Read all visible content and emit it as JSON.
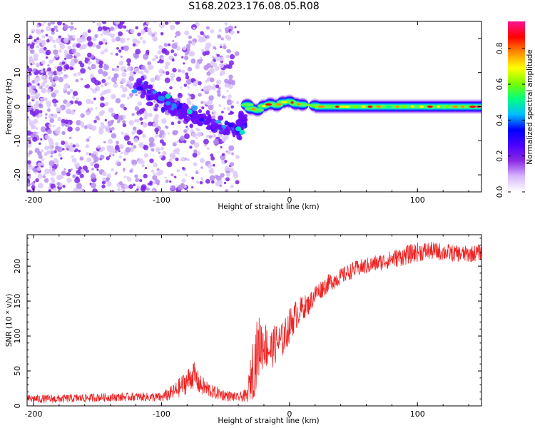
{
  "title": "S168.2023.176.08.05.R08",
  "chart_data": [
    {
      "type": "heatmap",
      "title": "S168.2023.176.08.05.R08",
      "xlabel": "Height of straight line (km)",
      "ylabel": "Frequency (Hz)",
      "xlim": [
        -205,
        150
      ],
      "ylim": [
        -25,
        25
      ],
      "x_ticks": [
        -200,
        -100,
        0,
        100
      ],
      "y_ticks": [
        -20,
        -10,
        0,
        10,
        20
      ],
      "colorbar": {
        "label": "Normalized spectral amplitude",
        "range": [
          0,
          0.95
        ],
        "ticks": [
          0.0,
          0.2,
          0.4,
          0.6,
          0.8
        ],
        "colors": [
          "#ffffff",
          "#d8b8ff",
          "#8a2be2",
          "#4b00ff",
          "#0000ff",
          "#00bfff",
          "#00ff7f",
          "#7cfc00",
          "#ffff00",
          "#ff8c00",
          "#ff0000",
          "#ff1493"
        ]
      },
      "features": [
        {
          "desc": "scattered noise",
          "x_range": [
            -205,
            -40
          ],
          "freq_range": [
            -25,
            25
          ],
          "amplitude": 0.15
        },
        {
          "desc": "descending track",
          "points": [
            [
              -120,
              7
            ],
            [
              -100,
              2
            ],
            [
              -80,
              -2
            ],
            [
              -60,
              -5
            ],
            [
              -40,
              -7
            ],
            [
              -35,
              -3
            ]
          ],
          "amplitude": 0.25
        },
        {
          "desc": "steady signal",
          "x_range": [
            -30,
            150
          ],
          "freq": 0,
          "amplitude": 0.85
        }
      ]
    },
    {
      "type": "line",
      "xlabel": "Height of straight line (km)",
      "ylabel": "SNR (10 * v/v)",
      "xlim": [
        -205,
        150
      ],
      "ylim": [
        0,
        245
      ],
      "x_ticks": [
        -200,
        -100,
        0,
        100
      ],
      "y_ticks": [
        0,
        50,
        100,
        150,
        200
      ],
      "line_color": "#ee2222",
      "series": [
        {
          "x": [
            -205,
            -180,
            -150,
            -120,
            -100,
            -90,
            -80,
            -75,
            -70,
            -60,
            -50,
            -40,
            -33,
            -28,
            -24,
            -20,
            -15,
            -10,
            -5,
            0,
            5,
            10,
            15,
            20,
            30,
            40,
            50,
            60,
            70,
            80,
            90,
            100,
            110,
            120,
            130,
            140,
            150
          ],
          "values": [
            10,
            10,
            12,
            13,
            12,
            20,
            35,
            45,
            30,
            20,
            15,
            12,
            15,
            60,
            85,
            90,
            80,
            90,
            95,
            115,
            130,
            140,
            145,
            160,
            175,
            185,
            195,
            200,
            205,
            210,
            215,
            220,
            222,
            220,
            218,
            217,
            220
          ],
          "noise_amplitude": [
            6,
            6,
            6,
            6,
            7,
            12,
            18,
            20,
            15,
            10,
            8,
            6,
            10,
            50,
            45,
            35,
            30,
            28,
            25,
            25,
            22,
            18,
            15,
            14,
            13,
            12,
            12,
            12,
            12,
            13,
            14,
            14,
            13,
            13,
            12,
            12,
            12
          ]
        }
      ]
    }
  ]
}
